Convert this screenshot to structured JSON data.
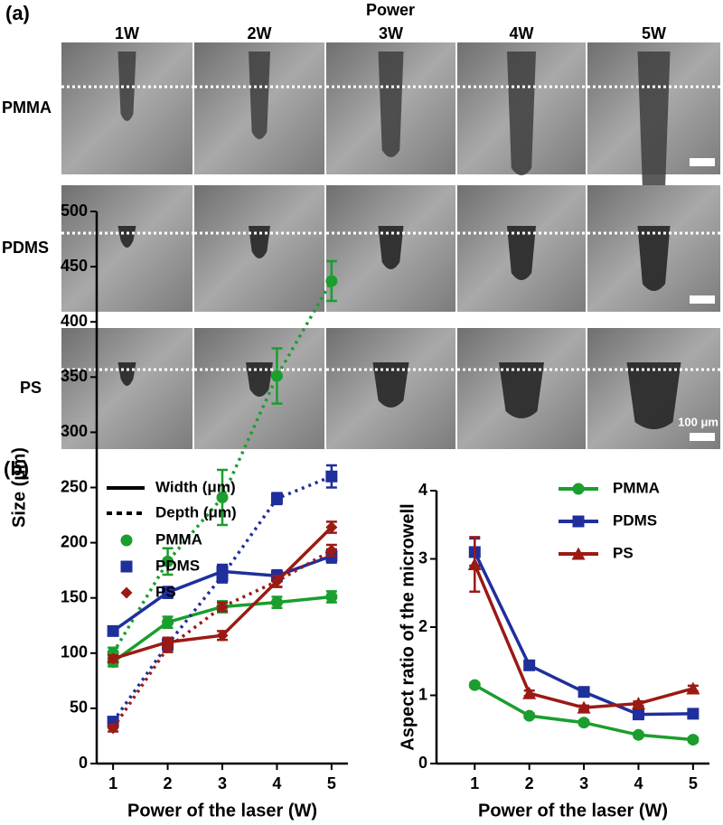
{
  "panel_a": {
    "label": "(a)",
    "axis_title": "Power",
    "columns": [
      "1W",
      "2W",
      "3W",
      "4W",
      "5W"
    ],
    "rows": [
      "PMMA",
      "PDMS",
      "PS"
    ],
    "scale_bar": "100 μm"
  },
  "panel_b": {
    "label": "(b)"
  },
  "chart_data": [
    {
      "type": "line",
      "xlabel": "Power of the laser (W)",
      "ylabel": "Size (μm)",
      "x": [
        1,
        2,
        3,
        4,
        5
      ],
      "xlim": [
        0.7,
        5.3
      ],
      "xticks": [
        1,
        2,
        3,
        4,
        5
      ],
      "ylim": [
        0,
        500
      ],
      "yticks": [
        0,
        50,
        100,
        150,
        200,
        250,
        300,
        350,
        400,
        450,
        500
      ],
      "measures": [
        {
          "label": "Width (μm)",
          "style": "solid"
        },
        {
          "label": "Depth (μm)",
          "style": "dotted"
        }
      ],
      "materials": [
        {
          "name": "PMMA",
          "color": "#1a9e2e",
          "marker": "circle"
        },
        {
          "name": "PDMS",
          "color": "#1f2f9c",
          "marker": "square"
        },
        {
          "name": "PS",
          "color": "#9b1a14",
          "marker": "diamond"
        }
      ],
      "series": [
        {
          "material": 0,
          "measure": 0,
          "values": [
            92,
            128,
            142,
            146,
            151
          ],
          "errors": [
            4,
            5,
            5,
            5,
            5
          ]
        },
        {
          "material": 0,
          "measure": 1,
          "values": [
            100,
            183,
            241,
            351,
            437
          ],
          "errors": [
            5,
            12,
            25,
            25,
            18
          ]
        },
        {
          "material": 1,
          "measure": 0,
          "values": [
            120,
            155,
            174,
            170,
            188
          ],
          "errors": [
            4,
            5,
            6,
            5,
            6
          ]
        },
        {
          "material": 1,
          "measure": 1,
          "values": [
            38,
            108,
            170,
            240,
            260
          ],
          "errors": [
            3,
            5,
            6,
            5,
            10
          ]
        },
        {
          "material": 2,
          "measure": 0,
          "values": [
            95,
            110,
            116,
            165,
            214
          ],
          "errors": [
            3,
            4,
            4,
            5,
            5
          ]
        },
        {
          "material": 2,
          "measure": 1,
          "values": [
            32,
            105,
            142,
            165,
            193
          ],
          "errors": [
            3,
            4,
            4,
            5,
            5
          ]
        }
      ]
    },
    {
      "type": "line",
      "xlabel": "Power of the laser (W)",
      "ylabel": "Aspect ratio of the microwell",
      "x": [
        1,
        2,
        3,
        4,
        5
      ],
      "xlim": [
        0.3,
        5.3
      ],
      "xticks": [
        1,
        2,
        3,
        4,
        5
      ],
      "ylim": [
        0,
        4
      ],
      "yticks": [
        0,
        1,
        2,
        3,
        4
      ],
      "series": [
        {
          "name": "PMMA",
          "color": "#1a9e2e",
          "marker": "circle",
          "values": [
            1.15,
            0.7,
            0.6,
            0.42,
            0.35
          ],
          "errors": [
            0.03,
            0.03,
            0.03,
            0.03,
            0.03
          ]
        },
        {
          "name": "PDMS",
          "color": "#1f2f9c",
          "marker": "square",
          "values": [
            3.1,
            1.44,
            1.05,
            0.72,
            0.73
          ],
          "errors": [
            0.2,
            0.06,
            0.05,
            0.04,
            0.04
          ]
        },
        {
          "name": "PS",
          "color": "#9b1a14",
          "marker": "triangle",
          "values": [
            2.92,
            1.03,
            0.82,
            0.88,
            1.1
          ],
          "errors": [
            0.4,
            0.04,
            0.03,
            0.03,
            0.04
          ]
        }
      ]
    }
  ]
}
